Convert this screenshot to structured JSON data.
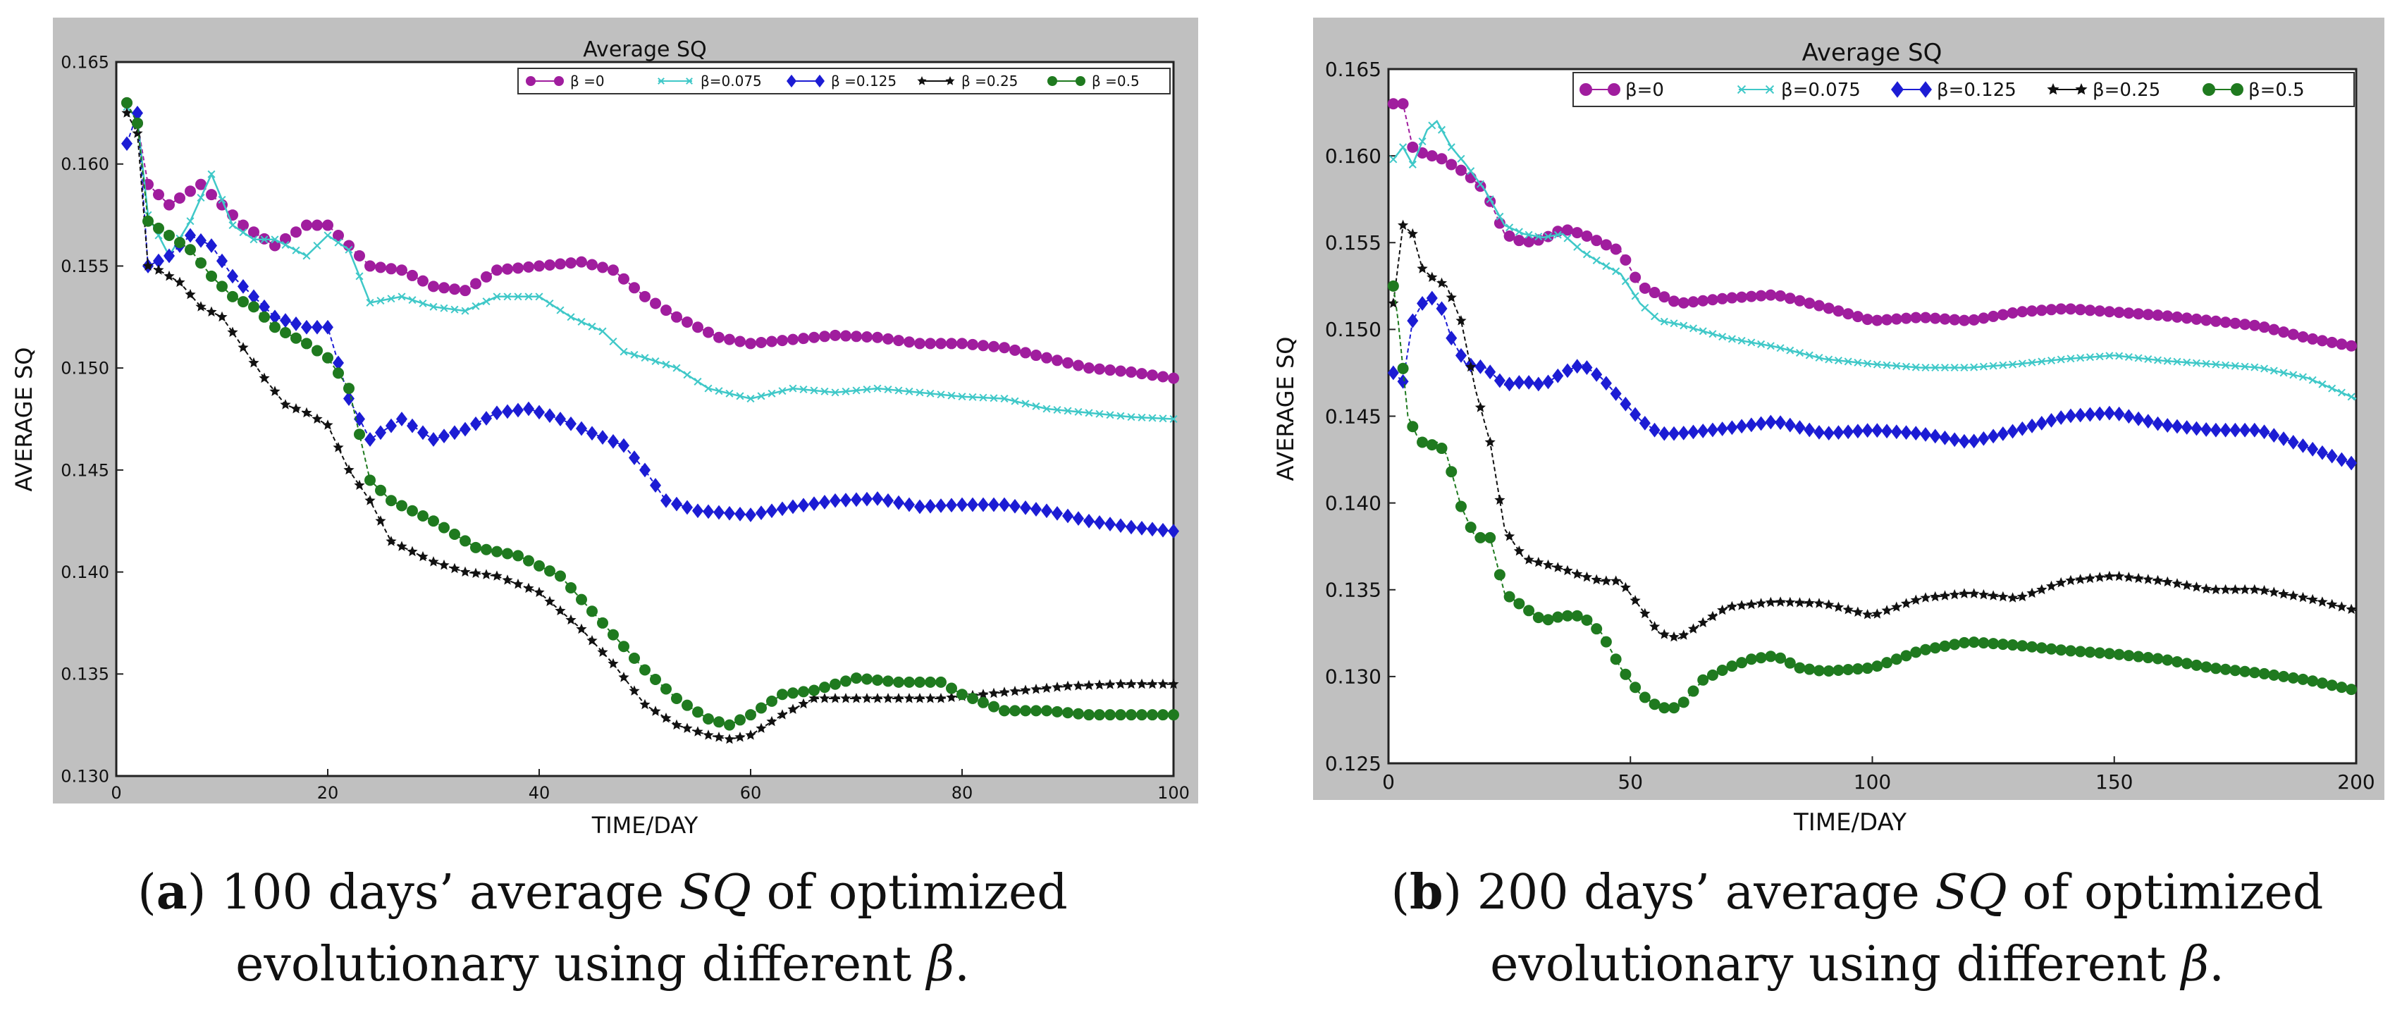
{
  "charts": [
    {
      "title": "Average SQ",
      "xlabel": "TIME/DAY",
      "ylabel": "AVERAGE SQ",
      "xlim": [
        0,
        100
      ],
      "ylim": [
        0.13,
        0.165
      ],
      "xticks": [
        "0",
        "20",
        "40",
        "60",
        "80",
        "100"
      ],
      "yticks": [
        "0.130",
        "0.135",
        "0.140",
        "0.145",
        "0.150",
        "0.155",
        "0.160",
        "0.165"
      ],
      "legend": [
        "β =0",
        "β=0.075",
        "β =0.125",
        "β =0.25",
        "β =0.5"
      ]
    },
    {
      "title": "Average SQ",
      "xlabel": "TIME/DAY",
      "ylabel": "AVERAGE SQ",
      "xlim": [
        0,
        200
      ],
      "ylim": [
        0.125,
        0.165
      ],
      "xticks": [
        "0",
        "50",
        "100",
        "150",
        "200"
      ],
      "yticks": [
        "0.125",
        "0.130",
        "0.135",
        "0.140",
        "0.145",
        "0.150",
        "0.155",
        "0.160",
        "0.165"
      ],
      "legend": [
        "β=0",
        "β=0.075",
        "β=0.125",
        "β=0.25",
        "β=0.5"
      ]
    }
  ],
  "chart_data": [
    {
      "type": "line",
      "title": "Average SQ",
      "xlabel": "TIME/DAY",
      "ylabel": "AVERAGE SQ",
      "xlim": [
        0,
        100
      ],
      "ylim": [
        0.13,
        0.165
      ],
      "series": [
        {
          "name": "β =0",
          "marker": "circle",
          "color": "#a01d9e",
          "x": [
            1,
            2,
            3,
            5,
            8,
            10,
            12,
            15,
            18,
            20,
            22,
            24,
            27,
            30,
            33,
            36,
            40,
            44,
            47,
            50,
            53,
            57,
            60,
            64,
            68,
            72,
            76,
            80,
            84,
            88,
            92,
            96,
            100
          ],
          "y": [
            0.163,
            0.162,
            0.159,
            0.158,
            0.159,
            0.158,
            0.157,
            0.156,
            0.157,
            0.157,
            0.156,
            0.155,
            0.1548,
            0.154,
            0.1538,
            0.1548,
            0.155,
            0.1552,
            0.1548,
            0.1535,
            0.1525,
            0.1515,
            0.1512,
            0.1514,
            0.1516,
            0.1515,
            0.1512,
            0.1512,
            0.151,
            0.1505,
            0.15,
            0.1498,
            0.1495
          ]
        },
        {
          "name": "β=0.075",
          "marker": "x",
          "color": "#3fc8c8",
          "x": [
            1,
            2,
            3,
            5,
            7,
            9,
            11,
            13,
            15,
            18,
            20,
            22,
            24,
            27,
            30,
            33,
            36,
            40,
            43,
            46,
            48,
            50,
            53,
            56,
            60,
            64,
            68,
            72,
            76,
            80,
            84,
            88,
            92,
            96,
            100
          ],
          "y": [
            0.1628,
            0.1622,
            0.1575,
            0.1555,
            0.1572,
            0.1595,
            0.157,
            0.1563,
            0.1563,
            0.1555,
            0.1565,
            0.1558,
            0.1532,
            0.1535,
            0.153,
            0.1528,
            0.1535,
            0.1535,
            0.1525,
            0.1518,
            0.1508,
            0.1505,
            0.15,
            0.149,
            0.1485,
            0.149,
            0.1488,
            0.149,
            0.1488,
            0.1486,
            0.1485,
            0.148,
            0.1478,
            0.1476,
            0.1475
          ]
        },
        {
          "name": "β =0.125",
          "marker": "diamond",
          "color": "#1c1cd4",
          "x": [
            1,
            2,
            3,
            5,
            7,
            9,
            11,
            13,
            15,
            18,
            20,
            22,
            23,
            24,
            27,
            30,
            33,
            36,
            39,
            42,
            45,
            48,
            50,
            52,
            55,
            60,
            64,
            68,
            72,
            76,
            80,
            84,
            88,
            92,
            96,
            100
          ],
          "y": [
            0.161,
            0.1625,
            0.155,
            0.1555,
            0.1565,
            0.156,
            0.1545,
            0.1535,
            0.1525,
            0.152,
            0.152,
            0.1485,
            0.1475,
            0.1465,
            0.1475,
            0.1465,
            0.147,
            0.1478,
            0.148,
            0.1475,
            0.1468,
            0.1462,
            0.145,
            0.1435,
            0.143,
            0.1428,
            0.1432,
            0.1435,
            0.1436,
            0.1432,
            0.1433,
            0.1433,
            0.143,
            0.1425,
            0.1422,
            0.142
          ]
        },
        {
          "name": "β =0.25",
          "marker": "star",
          "color": "#111111",
          "x": [
            1,
            2,
            3,
            4,
            6,
            8,
            10,
            12,
            14,
            16,
            18,
            20,
            22,
            24,
            26,
            30,
            33,
            36,
            40,
            44,
            47,
            50,
            53,
            56,
            58,
            60,
            63,
            66,
            70,
            74,
            78,
            82,
            86,
            90,
            95,
            100
          ],
          "y": [
            0.1625,
            0.1615,
            0.155,
            0.1548,
            0.1542,
            0.153,
            0.1525,
            0.151,
            0.1495,
            0.1482,
            0.1478,
            0.1472,
            0.145,
            0.1435,
            0.1415,
            0.1405,
            0.14,
            0.1398,
            0.139,
            0.1372,
            0.1355,
            0.1335,
            0.1325,
            0.132,
            0.1318,
            0.132,
            0.133,
            0.1338,
            0.1338,
            0.1338,
            0.1338,
            0.134,
            0.1342,
            0.1344,
            0.1345,
            0.1345
          ]
        },
        {
          "name": "β =0.5",
          "marker": "circle",
          "color": "#1f7a1f",
          "x": [
            1,
            2,
            3,
            5,
            7,
            9,
            11,
            13,
            15,
            18,
            20,
            22,
            24,
            26,
            30,
            34,
            38,
            42,
            46,
            50,
            53,
            56,
            58,
            60,
            63,
            66,
            70,
            74,
            78,
            80,
            84,
            88,
            92,
            96,
            100
          ],
          "y": [
            0.163,
            0.162,
            0.1572,
            0.1565,
            0.1558,
            0.1545,
            0.1535,
            0.153,
            0.152,
            0.1512,
            0.1505,
            0.149,
            0.1445,
            0.1435,
            0.1425,
            0.1412,
            0.1408,
            0.1398,
            0.1375,
            0.1352,
            0.1338,
            0.1328,
            0.1325,
            0.133,
            0.134,
            0.1342,
            0.1348,
            0.1346,
            0.1346,
            0.134,
            0.1332,
            0.1332,
            0.133,
            0.133,
            0.133
          ]
        }
      ]
    },
    {
      "type": "line",
      "title": "Average SQ",
      "xlabel": "TIME/DAY",
      "ylabel": "AVERAGE SQ",
      "xlim": [
        0,
        200
      ],
      "ylim": [
        0.125,
        0.165
      ],
      "series": [
        {
          "name": "β=0",
          "marker": "circle",
          "color": "#a01d9e",
          "x": [
            1,
            3,
            5,
            8,
            10,
            13,
            16,
            20,
            24,
            28,
            32,
            36,
            40,
            44,
            48,
            52,
            56,
            60,
            70,
            80,
            90,
            100,
            110,
            120,
            130,
            140,
            150,
            160,
            170,
            180,
            190,
            200
          ],
          "y": [
            0.163,
            0.163,
            0.1605,
            0.16,
            0.16,
            0.1595,
            0.159,
            0.158,
            0.1555,
            0.155,
            0.1552,
            0.1558,
            0.1555,
            0.155,
            0.1545,
            0.1525,
            0.152,
            0.1515,
            0.1518,
            0.152,
            0.1513,
            0.1505,
            0.1507,
            0.1505,
            0.151,
            0.1512,
            0.151,
            0.1508,
            0.1505,
            0.1502,
            0.1495,
            0.149
          ]
        },
        {
          "name": "β=0.075",
          "marker": "x",
          "color": "#3fc8c8",
          "x": [
            1,
            3,
            5,
            8,
            10,
            13,
            16,
            20,
            24,
            28,
            32,
            36,
            40,
            44,
            48,
            52,
            56,
            60,
            70,
            80,
            90,
            100,
            110,
            120,
            130,
            140,
            150,
            160,
            170,
            180,
            190,
            200
          ],
          "y": [
            0.1598,
            0.1605,
            0.1595,
            0.1615,
            0.162,
            0.1605,
            0.1595,
            0.158,
            0.156,
            0.1555,
            0.1553,
            0.1555,
            0.1545,
            0.1538,
            0.1532,
            0.1515,
            0.1505,
            0.1503,
            0.1495,
            0.149,
            0.1483,
            0.148,
            0.1478,
            0.1478,
            0.148,
            0.1483,
            0.1485,
            0.1482,
            0.148,
            0.1478,
            0.1472,
            0.146
          ]
        },
        {
          "name": "β=0.125",
          "marker": "diamond",
          "color": "#1c1cd4",
          "x": [
            1,
            3,
            5,
            7,
            9,
            11,
            13,
            16,
            20,
            24,
            28,
            32,
            36,
            40,
            44,
            48,
            52,
            56,
            60,
            70,
            80,
            90,
            100,
            110,
            120,
            130,
            140,
            150,
            160,
            170,
            180,
            190,
            200
          ],
          "y": [
            0.1475,
            0.147,
            0.1505,
            0.1515,
            0.1518,
            0.1512,
            0.1495,
            0.148,
            0.1478,
            0.1468,
            0.147,
            0.1468,
            0.1475,
            0.148,
            0.1472,
            0.146,
            0.1448,
            0.144,
            0.144,
            0.1443,
            0.1447,
            0.144,
            0.1442,
            0.144,
            0.1435,
            0.1442,
            0.145,
            0.1452,
            0.1445,
            0.1442,
            0.1442,
            0.1432,
            0.1422
          ]
        },
        {
          "name": "β=0.25",
          "marker": "star",
          "color": "#111111",
          "x": [
            1,
            3,
            5,
            7,
            9,
            12,
            15,
            18,
            21,
            24,
            28,
            32,
            36,
            40,
            44,
            48,
            52,
            56,
            60,
            70,
            80,
            90,
            100,
            110,
            120,
            130,
            140,
            150,
            160,
            170,
            180,
            190,
            200
          ],
          "y": [
            0.1515,
            0.156,
            0.1555,
            0.1535,
            0.153,
            0.1525,
            0.1505,
            0.1465,
            0.1435,
            0.1385,
            0.1368,
            0.1365,
            0.1362,
            0.1358,
            0.1355,
            0.1355,
            0.134,
            0.1325,
            0.1322,
            0.134,
            0.1343,
            0.1342,
            0.1335,
            0.1345,
            0.1348,
            0.1345,
            0.1355,
            0.1358,
            0.1355,
            0.135,
            0.135,
            0.1345,
            0.1338
          ]
        },
        {
          "name": "β=0.5",
          "marker": "circle",
          "color": "#1f7a1f",
          "x": [
            1,
            2,
            4,
            6,
            8,
            10,
            12,
            15,
            18,
            21,
            24,
            28,
            32,
            36,
            40,
            44,
            48,
            52,
            56,
            60,
            65,
            70,
            75,
            80,
            85,
            90,
            100,
            110,
            120,
            130,
            140,
            150,
            160,
            170,
            180,
            190,
            200
          ],
          "y": [
            0.1525,
            0.1505,
            0.145,
            0.1438,
            0.1432,
            0.1435,
            0.1428,
            0.1398,
            0.138,
            0.138,
            0.1348,
            0.134,
            0.1332,
            0.1335,
            0.1335,
            0.1325,
            0.1305,
            0.129,
            0.1282,
            0.1282,
            0.1298,
            0.1305,
            0.131,
            0.1312,
            0.1305,
            0.1303,
            0.1305,
            0.1315,
            0.132,
            0.1318,
            0.1315,
            0.1313,
            0.131,
            0.1305,
            0.1302,
            0.1298,
            0.1292
          ]
        }
      ]
    }
  ],
  "captions": [
    {
      "label": "a",
      "text_1": " 100 days’ average ",
      "sq": "SQ",
      "text_2": " of optimized",
      "line2": "evolutionary using different ",
      "beta": "β",
      "end": "."
    },
    {
      "label": "b",
      "text_1": " 200 days’ average ",
      "sq": "SQ",
      "text_2": " of optimized",
      "line2": "evolutionary using different ",
      "beta": "β",
      "end": "."
    }
  ],
  "colors": {
    "frame": "#c0c0c0",
    "plot_bg": "#ffffff"
  }
}
